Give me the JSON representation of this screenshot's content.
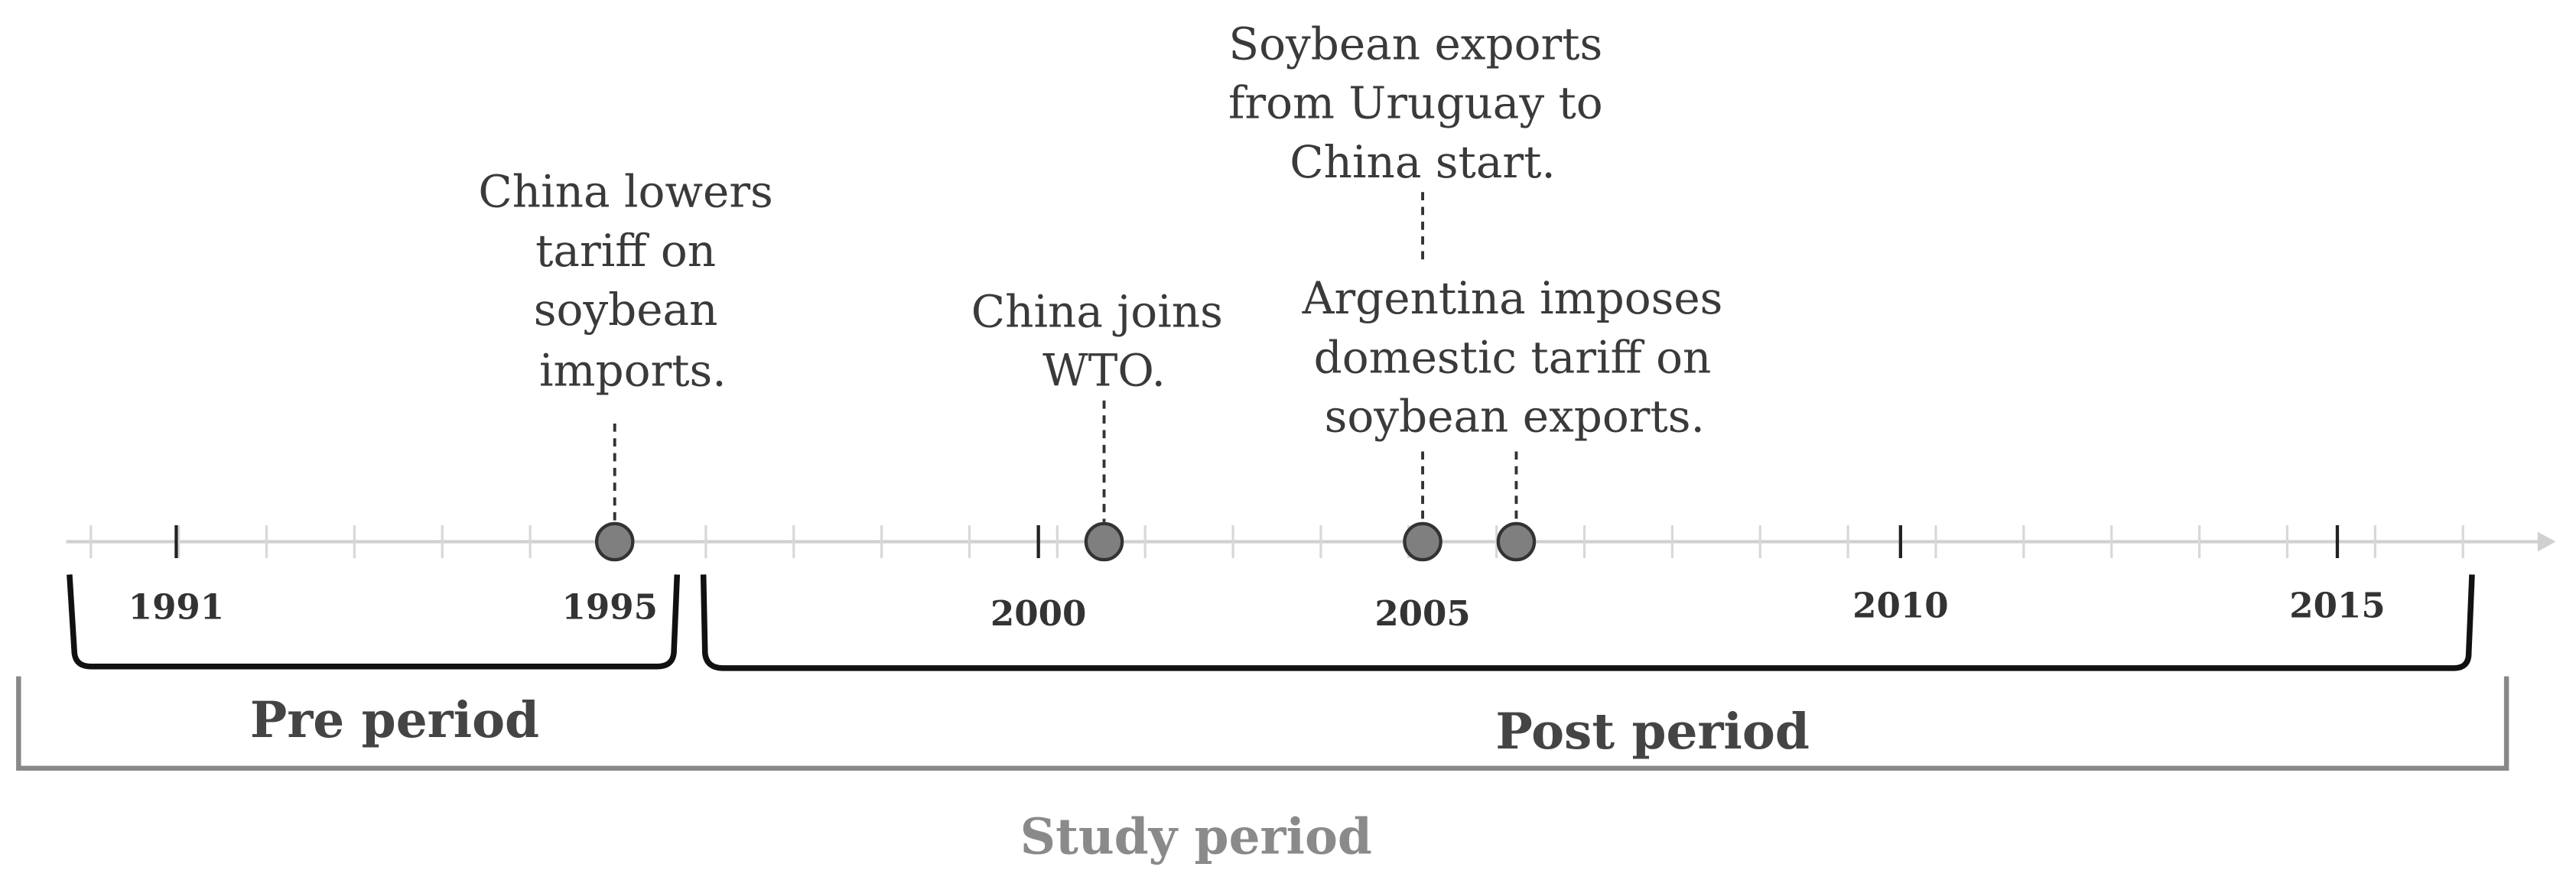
{
  "timeline": {
    "years": [
      "1991",
      "1995",
      "2000",
      "2005",
      "2010",
      "2015"
    ],
    "events": [
      {
        "lines": [
          "China lowers",
          "tariff on",
          "soybean",
          "imports."
        ]
      },
      {
        "lines": [
          "China joins",
          "WTO."
        ]
      },
      {
        "lines": [
          "Soybean exports",
          "from Uruguay to",
          "China start."
        ]
      },
      {
        "lines": [
          "Argentina imposes",
          "domestic tariff on",
          "soybean exports."
        ]
      }
    ],
    "periods": {
      "pre": "Pre period",
      "post": "Post period",
      "study": "Study period"
    }
  }
}
